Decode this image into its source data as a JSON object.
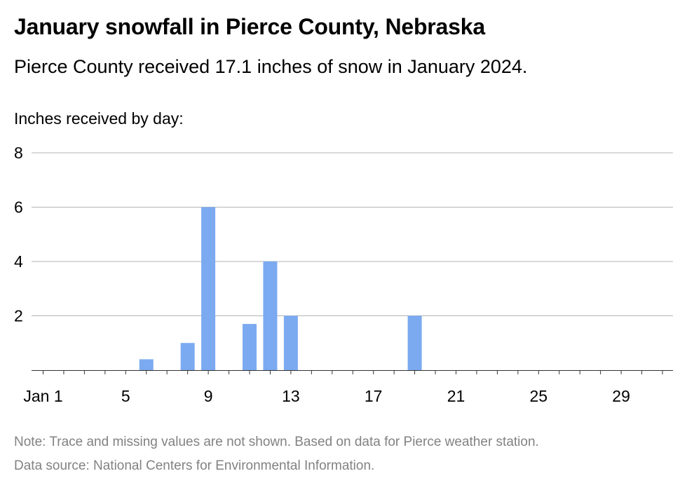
{
  "title": "January snowfall in Pierce County, Nebraska",
  "subtitle": "Pierce County received 17.1 inches of snow in January 2024.",
  "note": "Note: Trace and missing values are not shown. Based on data for Pierce weather station.",
  "source": "Data source: National Centers for Environmental Information.",
  "chart_data": {
    "type": "bar",
    "ylabel": "Inches received by day:",
    "xlabel": "",
    "ylim": [
      0,
      8
    ],
    "yticks": [
      2,
      4,
      6,
      8
    ],
    "xlim": [
      1,
      31
    ],
    "xticks": [
      {
        "day": 1,
        "label": "Jan 1"
      },
      {
        "day": 5,
        "label": "5"
      },
      {
        "day": 9,
        "label": "9"
      },
      {
        "day": 13,
        "label": "13"
      },
      {
        "day": 17,
        "label": "17"
      },
      {
        "day": 21,
        "label": "21"
      },
      {
        "day": 25,
        "label": "25"
      },
      {
        "day": 29,
        "label": "29"
      }
    ],
    "x": [
      6,
      8,
      9,
      11,
      12,
      13,
      19
    ],
    "values": [
      0.4,
      1.0,
      6.0,
      1.7,
      4.0,
      2.0,
      2.0
    ],
    "grid": true,
    "bar_color": "#7baaf0",
    "grid_color": "#b3b3b3",
    "axis_color": "#333333"
  }
}
